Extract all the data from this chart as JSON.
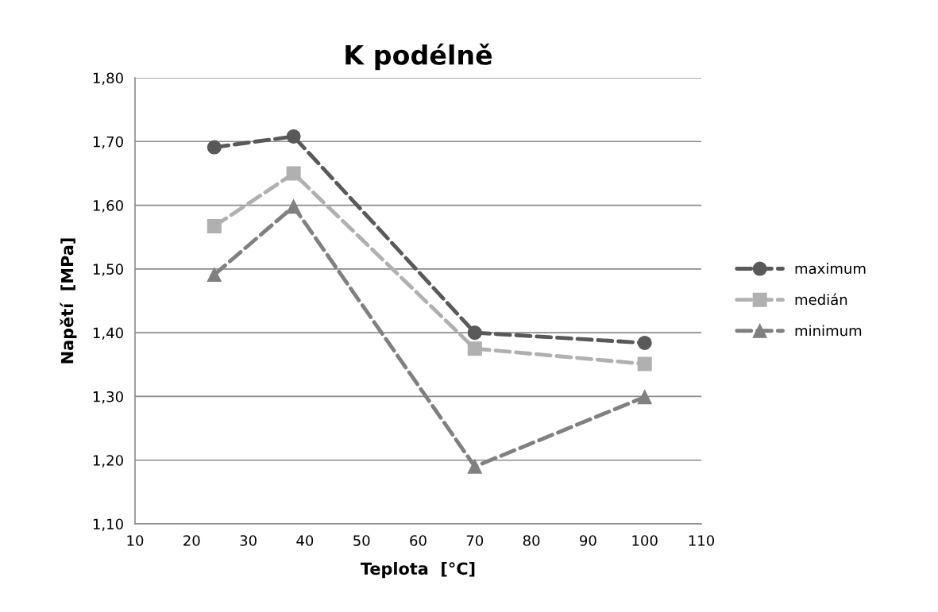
{
  "chart_data": {
    "type": "line",
    "title": "K podélně",
    "xlabel": "Teplota  [°C]",
    "ylabel": "Napětí  [MPa]",
    "x": [
      24,
      38,
      70,
      100
    ],
    "series": [
      {
        "name": "maximum",
        "color": "#595959",
        "marker": "circle",
        "values": [
          1.691,
          1.708,
          1.4,
          1.384
        ]
      },
      {
        "name": "medián",
        "color": "#b0b0b0",
        "marker": "square",
        "values": [
          1.567,
          1.65,
          1.375,
          1.351
        ]
      },
      {
        "name": "minimum",
        "color": "#808080",
        "marker": "triangle",
        "values": [
          1.491,
          1.598,
          1.19,
          1.299
        ]
      }
    ],
    "xlim": [
      10,
      110
    ],
    "xticks": [
      10,
      20,
      30,
      40,
      50,
      60,
      70,
      80,
      90,
      100,
      110
    ],
    "ylim": [
      1.1,
      1.8
    ],
    "yticks": [
      {
        "value": 1.1,
        "label": "1,10"
      },
      {
        "value": 1.2,
        "label": "1,20"
      },
      {
        "value": 1.3,
        "label": "1,30"
      },
      {
        "value": 1.4,
        "label": "1,40"
      },
      {
        "value": 1.5,
        "label": "1,50"
      },
      {
        "value": 1.6,
        "label": "1,60"
      },
      {
        "value": 1.7,
        "label": "1,70"
      },
      {
        "value": 1.8,
        "label": "1,80"
      }
    ],
    "grid": "y",
    "legend": "right",
    "line_style": "dashed"
  }
}
